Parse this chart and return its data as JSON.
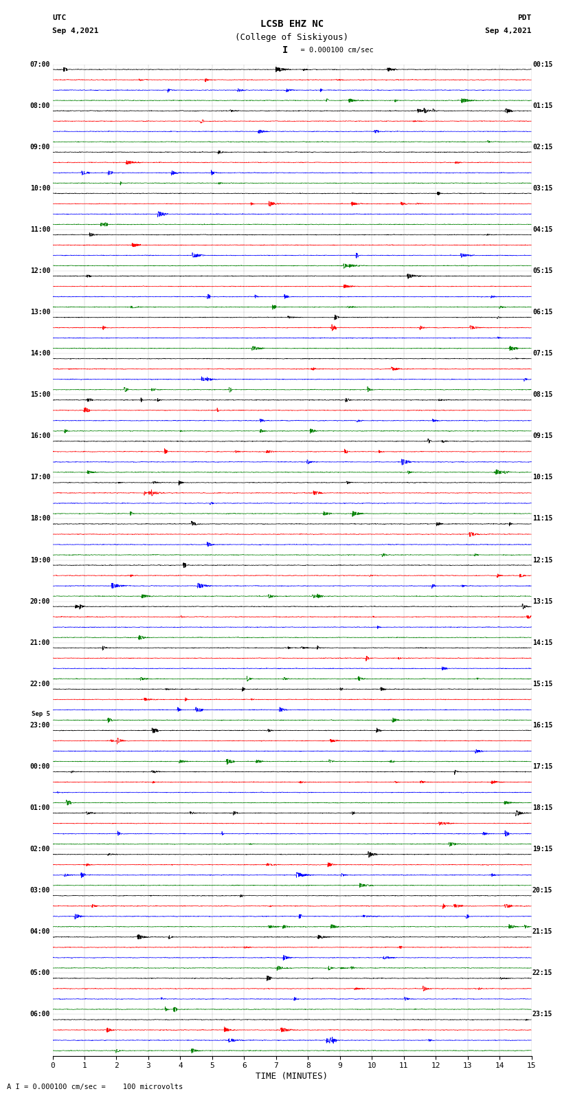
{
  "title_line1": "LCSB EHZ NC",
  "title_line2": "(College of Siskiyous)",
  "scale_label": "= 0.000100 cm/sec",
  "scale_bar_char": "I",
  "left_label_top": "UTC",
  "left_label_date": "Sep 4,2021",
  "right_label_top": "PDT",
  "right_label_date": "Sep 4,2021",
  "bottom_label": "TIME (MINUTES)",
  "bottom_note": "A I = 0.000100 cm/sec =    100 microvolts",
  "xlabel_ticks": [
    0,
    1,
    2,
    3,
    4,
    5,
    6,
    7,
    8,
    9,
    10,
    11,
    12,
    13,
    14,
    15
  ],
  "colors": [
    "black",
    "red",
    "blue",
    "green"
  ],
  "num_rows": 96,
  "left_times": [
    "07:00",
    "",
    "",
    "",
    "08:00",
    "",
    "",
    "",
    "09:00",
    "",
    "",
    "",
    "10:00",
    "",
    "",
    "",
    "11:00",
    "",
    "",
    "",
    "12:00",
    "",
    "",
    "",
    "13:00",
    "",
    "",
    "",
    "14:00",
    "",
    "",
    "",
    "15:00",
    "",
    "",
    "",
    "16:00",
    "",
    "",
    "",
    "17:00",
    "",
    "",
    "",
    "18:00",
    "",
    "",
    "",
    "19:00",
    "",
    "",
    "",
    "20:00",
    "",
    "",
    "",
    "21:00",
    "",
    "",
    "",
    "22:00",
    "",
    "",
    "",
    "23:00",
    "",
    "",
    "",
    "00:00",
    "",
    "",
    "",
    "01:00",
    "",
    "",
    "",
    "02:00",
    "",
    "",
    "",
    "03:00",
    "",
    "",
    "",
    "04:00",
    "",
    "",
    "",
    "05:00",
    "",
    "",
    "",
    "06:00",
    "",
    "",
    ""
  ],
  "sep5_row": 64,
  "right_times": [
    "00:15",
    "",
    "",
    "",
    "01:15",
    "",
    "",
    "",
    "02:15",
    "",
    "",
    "",
    "03:15",
    "",
    "",
    "",
    "04:15",
    "",
    "",
    "",
    "05:15",
    "",
    "",
    "",
    "06:15",
    "",
    "",
    "",
    "07:15",
    "",
    "",
    "",
    "08:15",
    "",
    "",
    "",
    "09:15",
    "",
    "",
    "",
    "10:15",
    "",
    "",
    "",
    "11:15",
    "",
    "",
    "",
    "12:15",
    "",
    "",
    "",
    "13:15",
    "",
    "",
    "",
    "14:15",
    "",
    "",
    "",
    "15:15",
    "",
    "",
    "",
    "16:15",
    "",
    "",
    "",
    "17:15",
    "",
    "",
    "",
    "18:15",
    "",
    "",
    "",
    "19:15",
    "",
    "",
    "",
    "20:15",
    "",
    "",
    "",
    "21:15",
    "",
    "",
    "",
    "22:15",
    "",
    "",
    "",
    "23:15",
    "",
    "",
    ""
  ],
  "background_color": "white",
  "n_points": 2000,
  "trace_amplitude": 0.32,
  "linewidth": 0.5
}
